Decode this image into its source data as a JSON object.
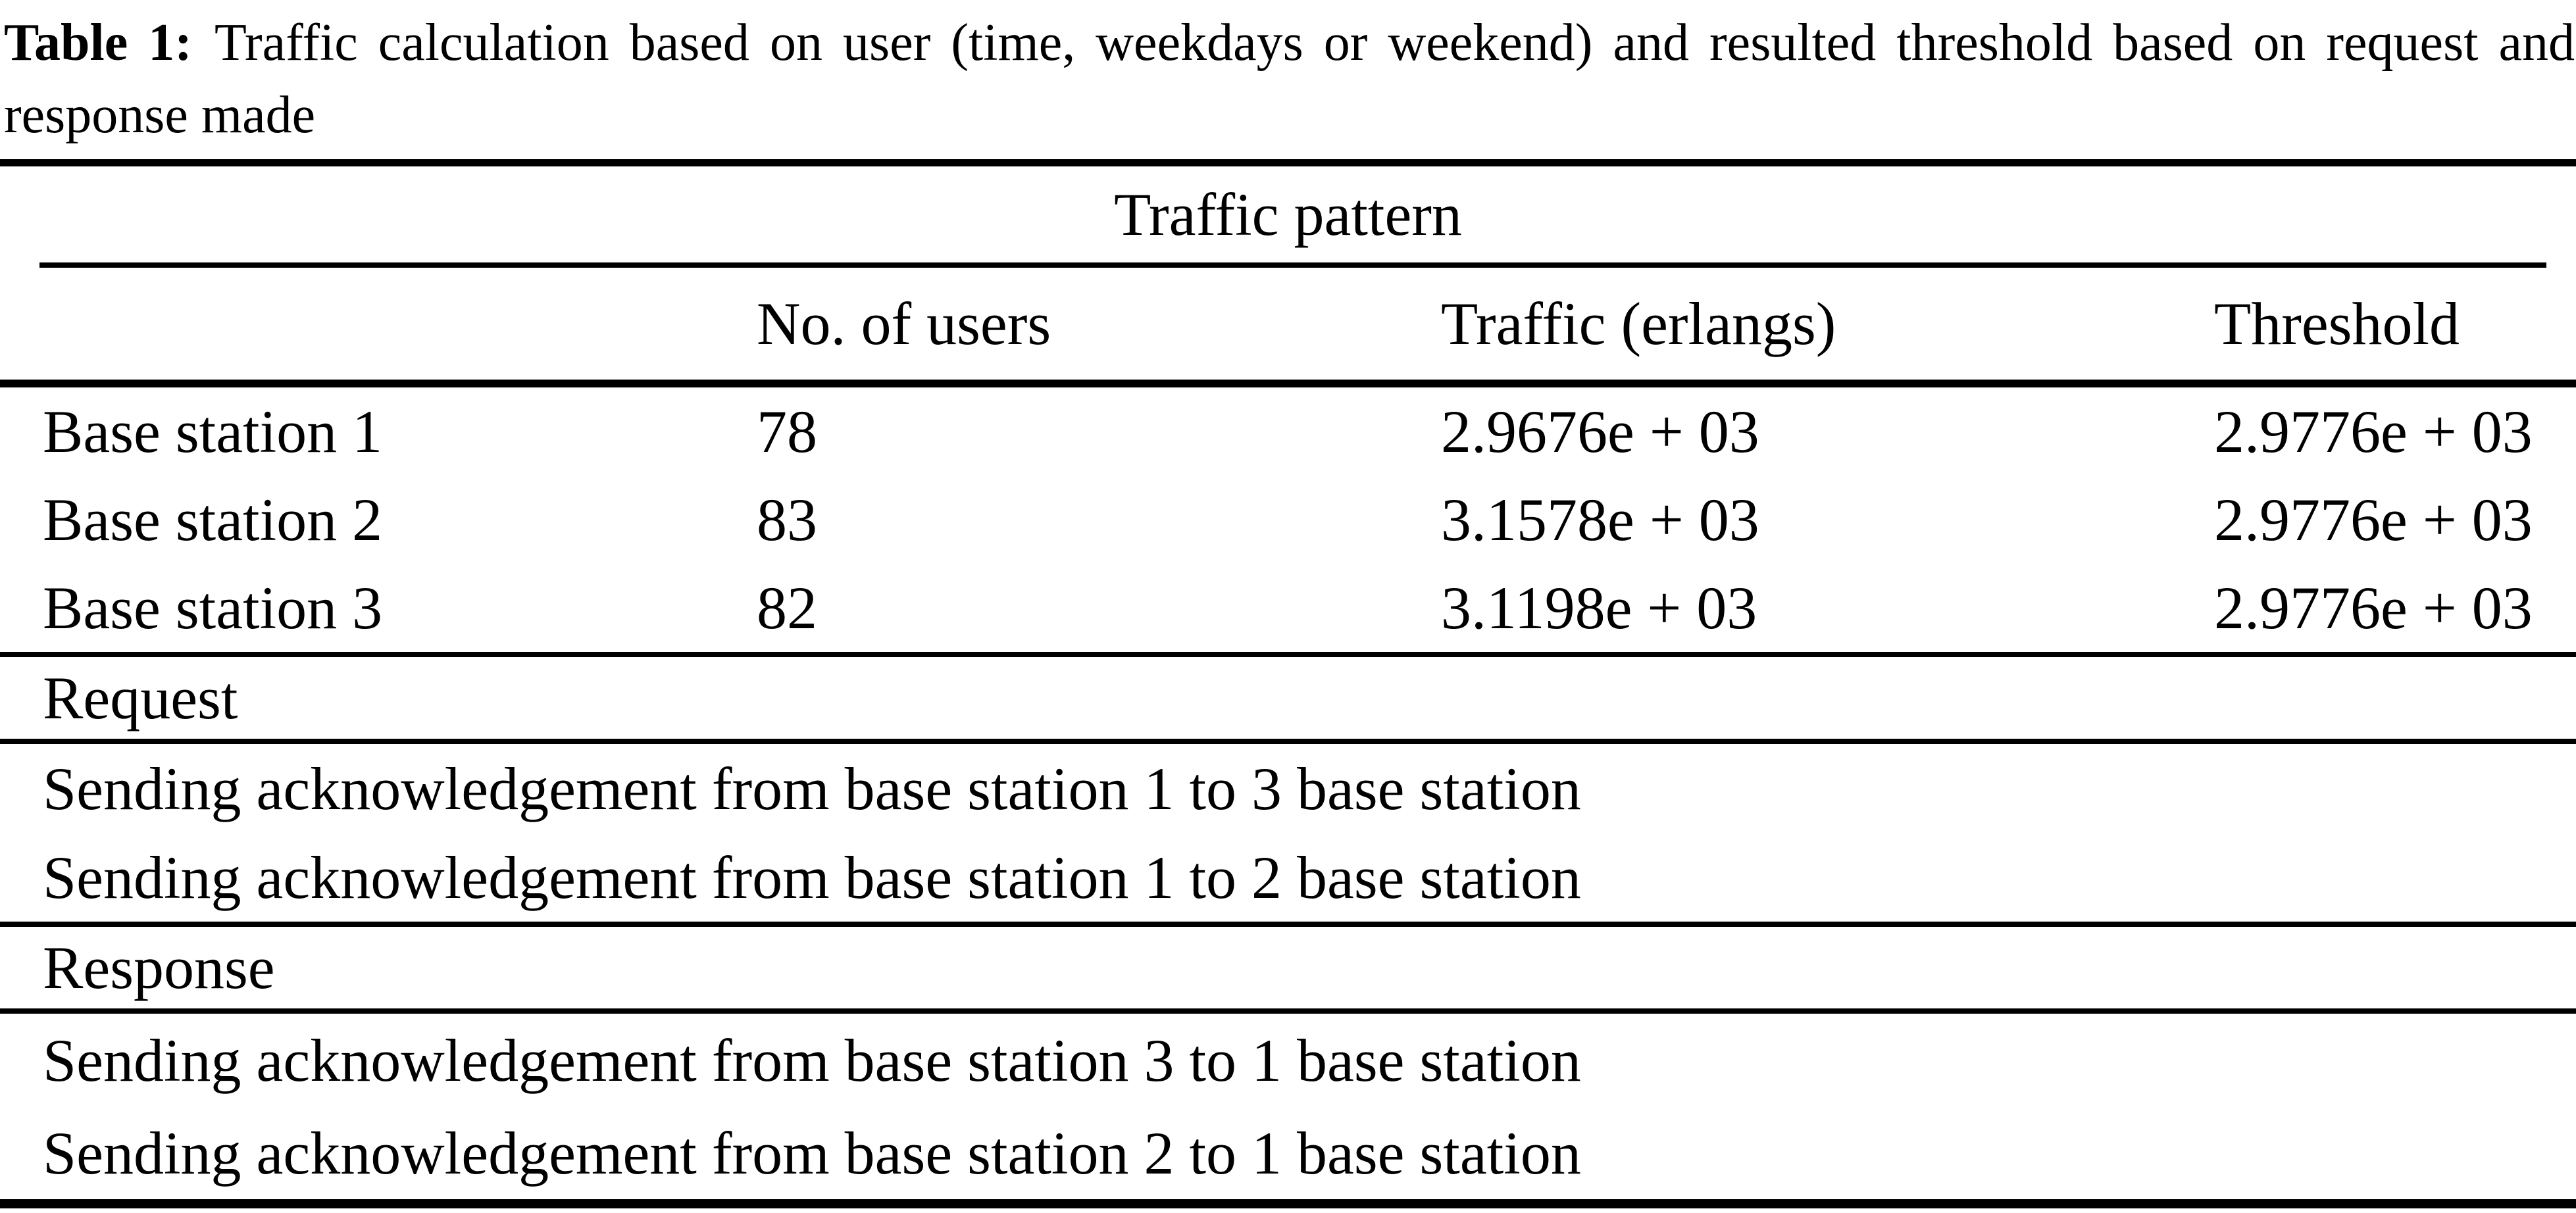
{
  "caption": {
    "label": "Table 1:",
    "text": "Traffic calculation based on user (time, weekdays or weekend) and resulted threshold based on request and response made"
  },
  "table": {
    "group_header": "Traffic pattern",
    "columns": [
      "",
      "No. of users",
      "Traffic (erlangs)",
      "Threshold"
    ],
    "rows": [
      {
        "name": "Base station 1",
        "users": "78",
        "traffic": "2.9676e + 03",
        "threshold": "2.9776e + 03"
      },
      {
        "name": "Base station 2",
        "users": "83",
        "traffic": "3.1578e + 03",
        "threshold": "2.9776e + 03"
      },
      {
        "name": "Base station 3",
        "users": "82",
        "traffic": "3.1198e + 03",
        "threshold": "2.9776e + 03"
      }
    ],
    "request": {
      "label": "Request",
      "items": [
        "Sending acknowledgement from base station 1 to 3 base station",
        "Sending acknowledgement from base station 1 to 2 base station"
      ]
    },
    "response": {
      "label": "Response",
      "items": [
        "Sending acknowledgement from base station 3 to 1 base station",
        "Sending acknowledgement from base station 2 to 1 base station"
      ]
    }
  },
  "colors": {
    "text": "#000000",
    "background": "#ffffff",
    "rule": "#000000"
  }
}
